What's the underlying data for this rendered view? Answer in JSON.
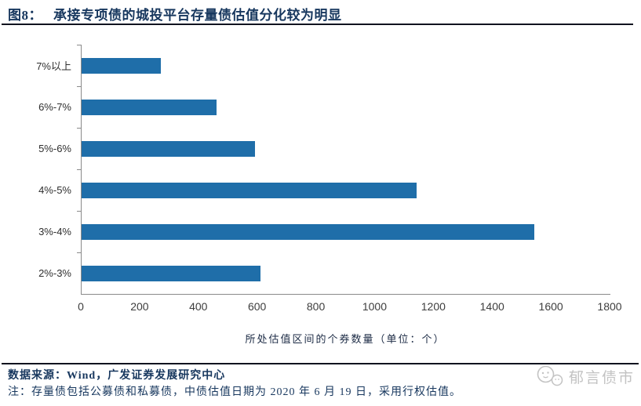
{
  "figure": {
    "number_label": "图8：",
    "title": "承接专项债的城投平台存量债估值分化较为明显"
  },
  "chart_data": {
    "type": "bar",
    "orientation": "horizontal",
    "title": "承接专项债的城投平台存量债估值分化较为明显",
    "categories": [
      "7%以上",
      "6%-7%",
      "5%-6%",
      "4%-5%",
      "3%-4%",
      "2%-3%"
    ],
    "values": [
      270,
      460,
      590,
      1140,
      1540,
      610
    ],
    "xlabel": "所处估值区间的个券数量（单位：个）",
    "ylabel": "",
    "xlim": [
      0,
      1800
    ],
    "xticks": [
      0,
      200,
      400,
      600,
      800,
      1000,
      1200,
      1400,
      1600,
      1800
    ],
    "grid": false,
    "legend_position": "none",
    "bar_color": "#1F6EA9"
  },
  "footer": {
    "source": "数据来源：Wind，广发证券发展研究中心",
    "note": "注：存量债包括公募债和私募债，中债估值日期为 2020 年 6 月 19 日，采用行权估值。",
    "watermark": "郁言债市"
  },
  "colors": {
    "title_text": "#17375E",
    "bar": "#1F6EA9",
    "axis": "#8A8A8A",
    "tick_label": "#3D3D3D",
    "rule": "#10131F",
    "watermark": "#C3C3C3"
  }
}
